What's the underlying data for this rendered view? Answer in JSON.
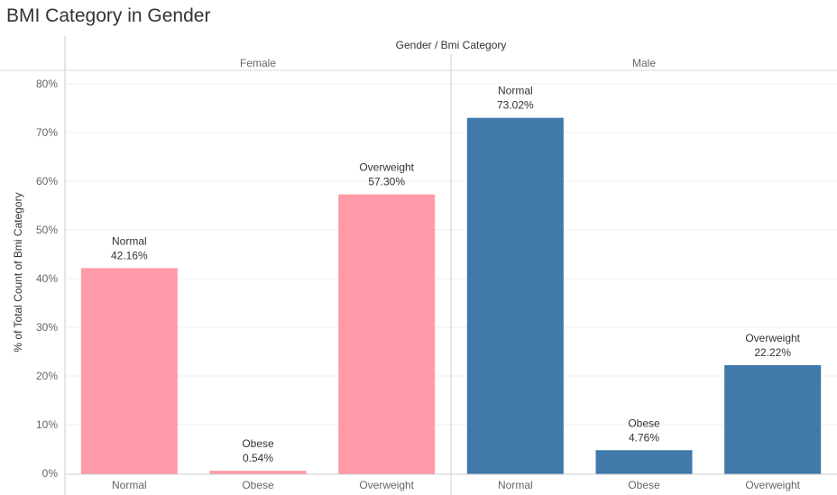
{
  "title": "BMI Category in Gender",
  "chart_data": {
    "type": "bar",
    "header": "Gender / Bmi Category",
    "ylabel": "% of Total Count of Bmi Category",
    "ylim": [
      0,
      80
    ],
    "yticks": [
      "0%",
      "10%",
      "20%",
      "30%",
      "40%",
      "50%",
      "60%",
      "70%",
      "80%"
    ],
    "grid": true,
    "panels": [
      {
        "name": "Female",
        "color": "#FF9AA8",
        "categories": [
          "Normal",
          "Obese",
          "Overweight"
        ],
        "values": [
          42.16,
          0.54,
          57.3
        ],
        "labels": [
          "42.16%",
          "0.54%",
          "57.30%"
        ]
      },
      {
        "name": "Male",
        "color": "#4079AA",
        "categories": [
          "Normal",
          "Obese",
          "Overweight"
        ],
        "values": [
          73.02,
          4.76,
          22.22
        ],
        "labels": [
          "73.02%",
          "4.76%",
          "22.22%"
        ]
      }
    ]
  }
}
